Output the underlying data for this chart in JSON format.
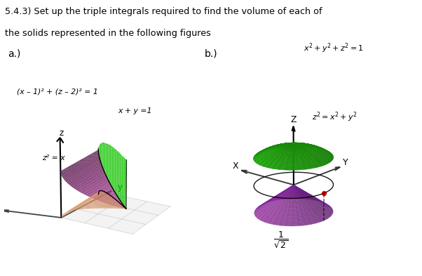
{
  "title_line1": "5.4.3) Set up the triple integrals required to find the volume of each of",
  "title_line2": "the solids represented in the following figures",
  "label_a": "a.)",
  "label_b": "b.)",
  "fig_bg": "#ffffff",
  "eq_a1": "(x – 1)² + (z – 2)² = 1",
  "eq_a2": "x + y =1",
  "eq_a3": "z² = x",
  "eq_b1": "x² + y² + z² = 1",
  "eq_b2": "z² = x²+y²",
  "color_pink": "#e855cc",
  "color_green_surf": "#22cc10",
  "color_peach": "#f0a878",
  "color_cone": "#b040a0",
  "color_sphere": "#33dd15",
  "sphere_edge": "#18880a",
  "cone_edge": "#7020a0"
}
